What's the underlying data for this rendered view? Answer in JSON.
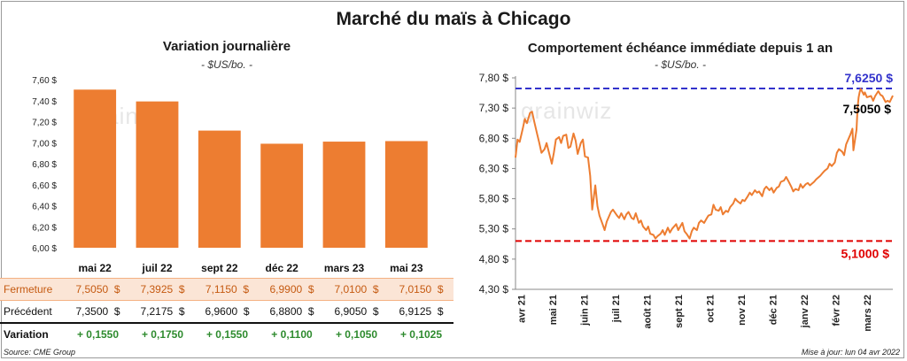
{
  "main_title": "Marché du maïs à Chicago",
  "left": {
    "title": "Variation journalière",
    "unit": "- $US/bo. -",
    "watermark": "grainwiz"
  },
  "right": {
    "title": "Comportement échéance immédiate depuis 1 an",
    "unit": "- $US/bo. -",
    "watermark": "grainwiz",
    "max_label": "7,6250 $",
    "min_label": "5,1000 $",
    "last_label": "7,5050 $"
  },
  "table": {
    "row_labels": [
      "Fermeture",
      "Précédent",
      "Variation"
    ],
    "columns": [
      {
        "month": "mai 22",
        "close": "7,5050",
        "prev": "7,3500",
        "var": "+ 0,1550"
      },
      {
        "month": "juil 22",
        "close": "7,3925",
        "prev": "7,2175",
        "var": "+ 0,1750"
      },
      {
        "month": "sept 22",
        "close": "7,1150",
        "prev": "6,9600",
        "var": "+ 0,1550"
      },
      {
        "month": "déc 22",
        "close": "6,9900",
        "prev": "6,8800",
        "var": "+ 0,1100"
      },
      {
        "month": "mars 23",
        "close": "7,0100",
        "prev": "6,9050",
        "var": "+ 0,1050"
      },
      {
        "month": "mai 23",
        "close": "7,0150",
        "prev": "6,9125",
        "var": "+ 0,1025"
      }
    ],
    "currency": "$"
  },
  "footer": {
    "source": "Source: CME Group",
    "updated": "Mise à jour: lun 04 avr 2022"
  },
  "chart_data": [
    {
      "type": "bar",
      "title": "Variation journalière",
      "subtitle": "- $US/bo. -",
      "categories": [
        "mai 22",
        "juil 22",
        "sept 22",
        "déc 22",
        "mars 23",
        "mai 23"
      ],
      "values": [
        7.505,
        7.3925,
        7.115,
        6.99,
        7.01,
        7.015
      ],
      "ylim": [
        6.0,
        7.6
      ],
      "yticks": [
        6.0,
        6.2,
        6.4,
        6.6,
        6.8,
        7.0,
        7.2,
        7.4,
        7.6
      ],
      "ytick_labels": [
        "6,00 $",
        "6,20 $",
        "6,40 $",
        "6,60 $",
        "6,80 $",
        "7,00 $",
        "7,20 $",
        "7,40 $",
        "7,60 $"
      ],
      "grid": false,
      "color": "#ed7d31"
    },
    {
      "type": "line",
      "title": "Comportement échéance immédiate depuis 1 an",
      "subtitle": "- $US/bo. -",
      "x_start": "2021-04-05",
      "x_end": "2022-04-04",
      "xtick_labels": [
        "avr 21",
        "mai 21",
        "juin 21",
        "juil 21",
        "août 21",
        "sept 21",
        "oct 21",
        "nov 21",
        "déc 21",
        "janv 22",
        "févr 22",
        "mars 22"
      ],
      "ylim": [
        4.3,
        7.8
      ],
      "yticks": [
        4.3,
        4.8,
        5.3,
        5.8,
        6.3,
        6.8,
        7.3,
        7.8
      ],
      "ytick_labels": [
        "4,30 $",
        "4,80 $",
        "5,30 $",
        "5,80 $",
        "6,30 $",
        "6,80 $",
        "7,30 $",
        "7,80 $"
      ],
      "series": [
        {
          "color": "#ed7d31",
          "points": [
            [
              "2021-04-05",
              6.48
            ],
            [
              "2021-04-07",
              6.78
            ],
            [
              "2021-04-09",
              6.74
            ],
            [
              "2021-04-12",
              6.96
            ],
            [
              "2021-04-14",
              7.12
            ],
            [
              "2021-04-16",
              7.05
            ],
            [
              "2021-04-19",
              7.22
            ],
            [
              "2021-04-21",
              7.24
            ],
            [
              "2021-04-23",
              7.08
            ],
            [
              "2021-04-26",
              6.86
            ],
            [
              "2021-04-28",
              6.72
            ],
            [
              "2021-04-30",
              6.56
            ],
            [
              "2021-05-03",
              6.62
            ],
            [
              "2021-05-05",
              6.72
            ],
            [
              "2021-05-07",
              6.58
            ],
            [
              "2021-05-10",
              6.38
            ],
            [
              "2021-05-12",
              6.56
            ],
            [
              "2021-05-14",
              6.78
            ],
            [
              "2021-05-17",
              6.82
            ],
            [
              "2021-05-19",
              6.72
            ],
            [
              "2021-05-21",
              6.84
            ],
            [
              "2021-05-24",
              6.86
            ],
            [
              "2021-05-26",
              6.64
            ],
            [
              "2021-05-28",
              6.66
            ],
            [
              "2021-05-31",
              6.88
            ],
            [
              "2021-06-02",
              6.76
            ],
            [
              "2021-06-04",
              6.54
            ],
            [
              "2021-06-07",
              6.72
            ],
            [
              "2021-06-09",
              6.78
            ],
            [
              "2021-06-11",
              6.5
            ],
            [
              "2021-06-14",
              6.48
            ],
            [
              "2021-06-16",
              6.18
            ],
            [
              "2021-06-18",
              5.62
            ],
            [
              "2021-06-21",
              6.02
            ],
            [
              "2021-06-23",
              5.68
            ],
            [
              "2021-06-25",
              5.52
            ],
            [
              "2021-06-28",
              5.38
            ],
            [
              "2021-06-30",
              5.28
            ],
            [
              "2021-07-02",
              5.42
            ],
            [
              "2021-07-06",
              5.58
            ],
            [
              "2021-07-08",
              5.62
            ],
            [
              "2021-07-12",
              5.52
            ],
            [
              "2021-07-14",
              5.48
            ],
            [
              "2021-07-16",
              5.56
            ],
            [
              "2021-07-19",
              5.46
            ],
            [
              "2021-07-21",
              5.54
            ],
            [
              "2021-07-23",
              5.58
            ],
            [
              "2021-07-26",
              5.48
            ],
            [
              "2021-07-28",
              5.46
            ],
            [
              "2021-07-30",
              5.56
            ],
            [
              "2021-08-02",
              5.4
            ],
            [
              "2021-08-04",
              5.44
            ],
            [
              "2021-08-06",
              5.34
            ],
            [
              "2021-08-09",
              5.28
            ],
            [
              "2021-08-11",
              5.34
            ],
            [
              "2021-08-13",
              5.22
            ],
            [
              "2021-08-16",
              5.2
            ],
            [
              "2021-08-18",
              5.14
            ],
            [
              "2021-08-20",
              5.18
            ],
            [
              "2021-08-23",
              5.22
            ],
            [
              "2021-08-25",
              5.28
            ],
            [
              "2021-08-27",
              5.2
            ],
            [
              "2021-08-30",
              5.32
            ],
            [
              "2021-09-01",
              5.24
            ],
            [
              "2021-09-03",
              5.3
            ],
            [
              "2021-09-07",
              5.38
            ],
            [
              "2021-09-09",
              5.28
            ],
            [
              "2021-09-13",
              5.4
            ],
            [
              "2021-09-15",
              5.26
            ],
            [
              "2021-09-17",
              5.22
            ],
            [
              "2021-09-20",
              5.14
            ],
            [
              "2021-09-22",
              5.26
            ],
            [
              "2021-09-24",
              5.32
            ],
            [
              "2021-09-27",
              5.28
            ],
            [
              "2021-09-29",
              5.4
            ],
            [
              "2021-10-01",
              5.44
            ],
            [
              "2021-10-04",
              5.4
            ],
            [
              "2021-10-06",
              5.46
            ],
            [
              "2021-10-08",
              5.52
            ],
            [
              "2021-10-11",
              5.54
            ],
            [
              "2021-10-13",
              5.7
            ],
            [
              "2021-10-15",
              5.62
            ],
            [
              "2021-10-18",
              5.6
            ],
            [
              "2021-10-20",
              5.66
            ],
            [
              "2021-10-22",
              5.54
            ],
            [
              "2021-10-25",
              5.6
            ],
            [
              "2021-10-27",
              5.58
            ],
            [
              "2021-10-29",
              5.66
            ],
            [
              "2021-11-01",
              5.72
            ],
            [
              "2021-11-03",
              5.8
            ],
            [
              "2021-11-05",
              5.76
            ],
            [
              "2021-11-08",
              5.72
            ],
            [
              "2021-11-10",
              5.78
            ],
            [
              "2021-11-12",
              5.76
            ],
            [
              "2021-11-15",
              5.84
            ],
            [
              "2021-11-17",
              5.9
            ],
            [
              "2021-11-19",
              5.86
            ],
            [
              "2021-11-22",
              5.94
            ],
            [
              "2021-11-24",
              5.9
            ],
            [
              "2021-11-26",
              5.92
            ],
            [
              "2021-11-29",
              5.84
            ],
            [
              "2021-12-01",
              5.96
            ],
            [
              "2021-12-03",
              6.0
            ],
            [
              "2021-12-06",
              5.94
            ],
            [
              "2021-12-08",
              5.98
            ],
            [
              "2021-12-10",
              5.9
            ],
            [
              "2021-12-13",
              5.98
            ],
            [
              "2021-12-15",
              6.0
            ],
            [
              "2021-12-17",
              6.08
            ],
            [
              "2021-12-20",
              6.1
            ],
            [
              "2021-12-22",
              6.16
            ],
            [
              "2021-12-24",
              6.1
            ],
            [
              "2021-12-27",
              6.0
            ],
            [
              "2021-12-29",
              5.92
            ],
            [
              "2021-12-31",
              5.96
            ],
            [
              "2022-01-03",
              5.94
            ],
            [
              "2022-01-05",
              6.04
            ],
            [
              "2022-01-07",
              5.98
            ],
            [
              "2022-01-10",
              6.04
            ],
            [
              "2022-01-12",
              6.06
            ],
            [
              "2022-01-14",
              6.02
            ],
            [
              "2022-01-18",
              6.08
            ],
            [
              "2022-01-20",
              6.12
            ],
            [
              "2022-01-24",
              6.18
            ],
            [
              "2022-01-26",
              6.22
            ],
            [
              "2022-01-28",
              6.26
            ],
            [
              "2022-01-31",
              6.3
            ],
            [
              "2022-02-02",
              6.38
            ],
            [
              "2022-02-04",
              6.34
            ],
            [
              "2022-02-07",
              6.4
            ],
            [
              "2022-02-09",
              6.56
            ],
            [
              "2022-02-11",
              6.62
            ],
            [
              "2022-02-14",
              6.58
            ],
            [
              "2022-02-16",
              6.52
            ],
            [
              "2022-02-18",
              6.7
            ],
            [
              "2022-02-22",
              6.86
            ],
            [
              "2022-02-24",
              6.96
            ],
            [
              "2022-02-25",
              6.6
            ],
            [
              "2022-02-28",
              6.94
            ],
            [
              "2022-03-01",
              7.3
            ],
            [
              "2022-03-02",
              7.48
            ],
            [
              "2022-03-03",
              7.56
            ],
            [
              "2022-03-04",
              7.62
            ],
            [
              "2022-03-07",
              7.52
            ],
            [
              "2022-03-08",
              7.56
            ],
            [
              "2022-03-10",
              7.48
            ],
            [
              "2022-03-14",
              7.5
            ],
            [
              "2022-03-16",
              7.42
            ],
            [
              "2022-03-18",
              7.5
            ],
            [
              "2022-03-21",
              7.58
            ],
            [
              "2022-03-23",
              7.52
            ],
            [
              "2022-03-25",
              7.5
            ],
            [
              "2022-03-28",
              7.4
            ],
            [
              "2022-03-30",
              7.42
            ],
            [
              "2022-04-01",
              7.4
            ],
            [
              "2022-04-04",
              7.505
            ]
          ]
        }
      ],
      "reference_lines": [
        {
          "label": "max",
          "value": 7.625,
          "color": "#3333cc",
          "style": "dashed"
        },
        {
          "label": "min",
          "value": 5.1,
          "color": "#e00000",
          "style": "dashed"
        }
      ],
      "grid": false
    }
  ]
}
